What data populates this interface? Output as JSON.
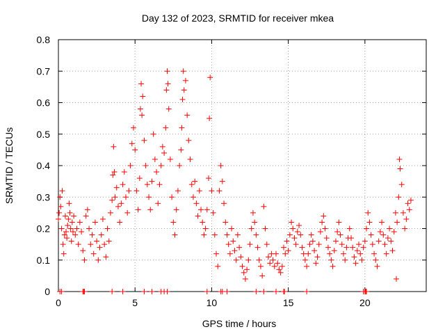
{
  "chart_data": {
    "type": "scatter",
    "title": "Day 132 of 2023, SRMTID for receiver mkea",
    "xlabel": "GPS time / hours",
    "ylabel": "SRMTID / TECUs",
    "xlim": [
      0,
      24
    ],
    "ylim": [
      0,
      0.8
    ],
    "xticks": [
      0,
      5,
      10,
      15,
      20
    ],
    "yticks": [
      0,
      0.1,
      0.2,
      0.3,
      0.4,
      0.5,
      0.6,
      0.7,
      0.8
    ],
    "xtick_labels": [
      "0",
      "5",
      "10",
      "15",
      "20"
    ],
    "ytick_labels": [
      "0",
      "0.1",
      "0.2",
      "0.3",
      "0.4",
      "0.5",
      "0.6",
      "0.7",
      "0.8"
    ],
    "grid": true,
    "marker": "plus",
    "color": "#ff0000",
    "series": [
      {
        "name": "mkea",
        "points": [
          [
            0.0,
            0.23
          ],
          [
            0.05,
            0.25
          ],
          [
            0.1,
            0.3
          ],
          [
            0.15,
            0.27
          ],
          [
            0.2,
            0.2
          ],
          [
            0.25,
            0.32
          ],
          [
            0.3,
            0.15
          ],
          [
            0.35,
            0.12
          ],
          [
            0.4,
            0.18
          ],
          [
            0.45,
            0.24
          ],
          [
            0.5,
            0.19
          ],
          [
            0.55,
            0.17
          ],
          [
            0.6,
            0.21
          ],
          [
            0.65,
            0.23
          ],
          [
            0.7,
            0.28
          ],
          [
            0.75,
            0.25
          ],
          [
            0.8,
            0.2
          ],
          [
            0.85,
            0.16
          ],
          [
            0.9,
            0.22
          ],
          [
            0.95,
            0.19
          ],
          [
            1.0,
            0.24
          ],
          [
            1.1,
            0.18
          ],
          [
            1.2,
            0.2
          ],
          [
            1.3,
            0.15
          ],
          [
            1.4,
            0.22
          ],
          [
            1.5,
            0.19
          ],
          [
            1.6,
            0.13
          ],
          [
            1.7,
            0.1
          ],
          [
            1.8,
            0.24
          ],
          [
            1.9,
            0.26
          ],
          [
            2.0,
            0.2
          ],
          [
            2.1,
            0.15
          ],
          [
            2.2,
            0.18
          ],
          [
            2.3,
            0.12
          ],
          [
            2.4,
            0.22
          ],
          [
            2.5,
            0.16
          ],
          [
            2.6,
            0.1
          ],
          [
            2.7,
            0.14
          ],
          [
            2.8,
            0.18
          ],
          [
            2.9,
            0.23
          ],
          [
            3.0,
            0.15
          ],
          [
            3.1,
            0.11
          ],
          [
            3.2,
            0.2
          ],
          [
            3.3,
            0.16
          ],
          [
            3.4,
            0.25
          ],
          [
            3.5,
            0.29
          ],
          [
            3.55,
            0.37
          ],
          [
            3.6,
            0.46
          ],
          [
            3.65,
            0.38
          ],
          [
            3.7,
            0.3
          ],
          [
            3.8,
            0.33
          ],
          [
            3.9,
            0.27
          ],
          [
            4.0,
            0.22
          ],
          [
            4.1,
            0.28
          ],
          [
            4.2,
            0.34
          ],
          [
            4.3,
            0.38
          ],
          [
            4.4,
            0.3
          ],
          [
            4.5,
            0.25
          ],
          [
            4.6,
            0.32
          ],
          [
            4.7,
            0.4
          ],
          [
            4.8,
            0.47
          ],
          [
            4.9,
            0.52
          ],
          [
            5.0,
            0.45
          ],
          [
            5.1,
            0.32
          ],
          [
            5.2,
            0.26
          ],
          [
            5.3,
            0.36
          ],
          [
            5.35,
            0.58
          ],
          [
            5.4,
            0.66
          ],
          [
            5.45,
            0.56
          ],
          [
            5.5,
            0.62
          ],
          [
            5.6,
            0.48
          ],
          [
            5.7,
            0.4
          ],
          [
            5.8,
            0.34
          ],
          [
            5.9,
            0.3
          ],
          [
            6.0,
            0.26
          ],
          [
            6.1,
            0.35
          ],
          [
            6.2,
            0.5
          ],
          [
            6.3,
            0.42
          ],
          [
            6.4,
            0.38
          ],
          [
            6.5,
            0.28
          ],
          [
            6.6,
            0.34
          ],
          [
            6.7,
            0.4
          ],
          [
            6.8,
            0.46
          ],
          [
            6.9,
            0.44
          ],
          [
            7.0,
            0.52
          ],
          [
            7.05,
            0.64
          ],
          [
            7.1,
            0.7
          ],
          [
            7.15,
            0.66
          ],
          [
            7.2,
            0.58
          ],
          [
            7.3,
            0.42
          ],
          [
            7.4,
            0.3
          ],
          [
            7.5,
            0.22
          ],
          [
            7.6,
            0.18
          ],
          [
            7.7,
            0.26
          ],
          [
            7.8,
            0.32
          ],
          [
            7.9,
            0.4
          ],
          [
            8.0,
            0.45
          ],
          [
            8.05,
            0.52
          ],
          [
            8.1,
            0.61
          ],
          [
            8.15,
            0.7
          ],
          [
            8.2,
            0.64
          ],
          [
            8.3,
            0.67
          ],
          [
            8.4,
            0.56
          ],
          [
            8.5,
            0.48
          ],
          [
            8.6,
            0.42
          ],
          [
            8.7,
            0.34
          ],
          [
            8.8,
            0.3
          ],
          [
            8.9,
            0.35
          ],
          [
            9.0,
            0.28
          ],
          [
            9.1,
            0.24
          ],
          [
            9.2,
            0.32
          ],
          [
            9.3,
            0.26
          ],
          [
            9.4,
            0.22
          ],
          [
            9.5,
            0.18
          ],
          [
            9.6,
            0.2
          ],
          [
            9.7,
            0.26
          ],
          [
            9.8,
            0.36
          ],
          [
            9.85,
            0.55
          ],
          [
            9.9,
            0.68
          ],
          [
            10.0,
            0.32
          ],
          [
            10.1,
            0.25
          ],
          [
            10.2,
            0.18
          ],
          [
            10.3,
            0.12
          ],
          [
            10.4,
            0.08
          ],
          [
            10.5,
            0.32
          ],
          [
            10.6,
            0.4
          ],
          [
            10.7,
            0.35
          ],
          [
            10.8,
            0.28
          ],
          [
            10.9,
            0.22
          ],
          [
            11.0,
            0.18
          ],
          [
            11.1,
            0.15
          ],
          [
            11.2,
            0.12
          ],
          [
            11.3,
            0.2
          ],
          [
            11.4,
            0.16
          ],
          [
            11.5,
            0.13
          ],
          [
            11.6,
            0.1
          ],
          [
            11.7,
            0.18
          ],
          [
            11.8,
            0.14
          ],
          [
            11.9,
            0.11
          ],
          [
            12.0,
            0.08
          ],
          [
            12.1,
            0.06
          ],
          [
            12.2,
            0.04
          ],
          [
            12.3,
            0.07
          ],
          [
            12.4,
            0.1
          ],
          [
            12.5,
            0.15
          ],
          [
            12.6,
            0.2
          ],
          [
            12.7,
            0.25
          ],
          [
            12.8,
            0.22
          ],
          [
            12.9,
            0.18
          ],
          [
            13.0,
            0.14
          ],
          [
            13.1,
            0.1
          ],
          [
            13.2,
            0.08
          ],
          [
            13.3,
            0.05
          ],
          [
            13.4,
            0.27
          ],
          [
            13.5,
            0.2
          ],
          [
            13.6,
            0.15
          ],
          [
            13.7,
            0.11
          ],
          [
            13.8,
            0.09
          ],
          [
            13.9,
            0.12
          ],
          [
            14.0,
            0.1
          ],
          [
            14.1,
            0.08
          ],
          [
            14.2,
            0.12
          ],
          [
            14.3,
            0.09
          ],
          [
            14.4,
            0.07
          ],
          [
            14.5,
            0.06
          ],
          [
            14.6,
            0.08
          ],
          [
            14.7,
            0.14
          ],
          [
            14.8,
            0.12
          ],
          [
            14.9,
            0.16
          ],
          [
            15.0,
            0.13
          ],
          [
            15.1,
            0.18
          ],
          [
            15.2,
            0.22
          ],
          [
            15.3,
            0.2
          ],
          [
            15.4,
            0.17
          ],
          [
            15.5,
            0.15
          ],
          [
            15.6,
            0.19
          ],
          [
            15.7,
            0.21
          ],
          [
            15.8,
            0.18
          ],
          [
            15.9,
            0.14
          ],
          [
            16.0,
            0.12
          ],
          [
            16.1,
            0.1
          ],
          [
            16.2,
            0.08
          ],
          [
            16.3,
            0.12
          ],
          [
            16.4,
            0.15
          ],
          [
            16.5,
            0.18
          ],
          [
            16.6,
            0.16
          ],
          [
            16.7,
            0.13
          ],
          [
            16.8,
            0.09
          ],
          [
            16.9,
            0.11
          ],
          [
            17.0,
            0.15
          ],
          [
            17.1,
            0.19
          ],
          [
            17.2,
            0.22
          ],
          [
            17.3,
            0.24
          ],
          [
            17.4,
            0.2
          ],
          [
            17.5,
            0.17
          ],
          [
            17.6,
            0.14
          ],
          [
            17.7,
            0.12
          ],
          [
            17.8,
            0.1
          ],
          [
            17.9,
            0.08
          ],
          [
            18.0,
            0.13
          ],
          [
            18.1,
            0.16
          ],
          [
            18.2,
            0.19
          ],
          [
            18.3,
            0.22
          ],
          [
            18.4,
            0.18
          ],
          [
            18.5,
            0.15
          ],
          [
            18.6,
            0.12
          ],
          [
            18.7,
            0.1
          ],
          [
            18.8,
            0.14
          ],
          [
            18.9,
            0.17
          ],
          [
            19.0,
            0.2
          ],
          [
            19.1,
            0.17
          ],
          [
            19.2,
            0.14
          ],
          [
            19.3,
            0.11
          ],
          [
            19.4,
            0.09
          ],
          [
            19.5,
            0.13
          ],
          [
            19.6,
            0.15
          ],
          [
            19.7,
            0.12
          ],
          [
            19.8,
            0.1
          ],
          [
            19.9,
            0.14
          ],
          [
            20.0,
            0.16
          ],
          [
            20.1,
            0.2
          ],
          [
            20.2,
            0.25
          ],
          [
            20.3,
            0.22
          ],
          [
            20.4,
            0.18
          ],
          [
            20.5,
            0.15
          ],
          [
            20.6,
            0.12
          ],
          [
            20.7,
            0.1
          ],
          [
            20.8,
            0.08
          ],
          [
            20.9,
            0.16
          ],
          [
            21.0,
            0.19
          ],
          [
            21.1,
            0.22
          ],
          [
            21.2,
            0.18
          ],
          [
            21.3,
            0.15
          ],
          [
            21.4,
            0.12
          ],
          [
            21.5,
            0.17
          ],
          [
            21.6,
            0.2
          ],
          [
            21.7,
            0.16
          ],
          [
            21.8,
            0.13
          ],
          [
            21.9,
            0.19
          ],
          [
            22.0,
            0.25
          ],
          [
            22.05,
            0.04
          ],
          [
            22.1,
            0.22
          ],
          [
            22.2,
            0.3
          ],
          [
            22.25,
            0.42
          ],
          [
            22.3,
            0.39
          ],
          [
            22.4,
            0.34
          ],
          [
            22.5,
            0.25
          ],
          [
            22.6,
            0.2
          ],
          [
            22.7,
            0.23
          ],
          [
            22.8,
            0.28
          ],
          [
            22.9,
            0.26
          ],
          [
            23.0,
            0.29
          ],
          [
            0.1,
            0.0
          ],
          [
            0.2,
            0.0
          ],
          [
            1.6,
            0.0
          ],
          [
            1.65,
            0.0
          ],
          [
            1.7,
            0.0
          ],
          [
            3.5,
            0.0
          ],
          [
            4.2,
            0.0
          ],
          [
            5.6,
            0.0
          ],
          [
            6.1,
            0.0
          ],
          [
            6.7,
            0.0
          ],
          [
            6.9,
            0.0
          ],
          [
            7.1,
            0.0
          ],
          [
            9.7,
            0.0
          ],
          [
            10.6,
            0.0
          ],
          [
            10.7,
            0.0
          ],
          [
            11.0,
            0.0
          ],
          [
            12.9,
            0.0
          ],
          [
            13.4,
            0.0
          ],
          [
            14.2,
            0.0
          ],
          [
            14.7,
            0.0
          ],
          [
            14.75,
            0.0
          ],
          [
            16.2,
            0.0
          ],
          [
            19.9,
            0.0
          ],
          [
            20.0,
            0.0
          ],
          [
            20.05,
            0.0
          ],
          [
            20.1,
            0.0
          ]
        ]
      }
    ]
  }
}
